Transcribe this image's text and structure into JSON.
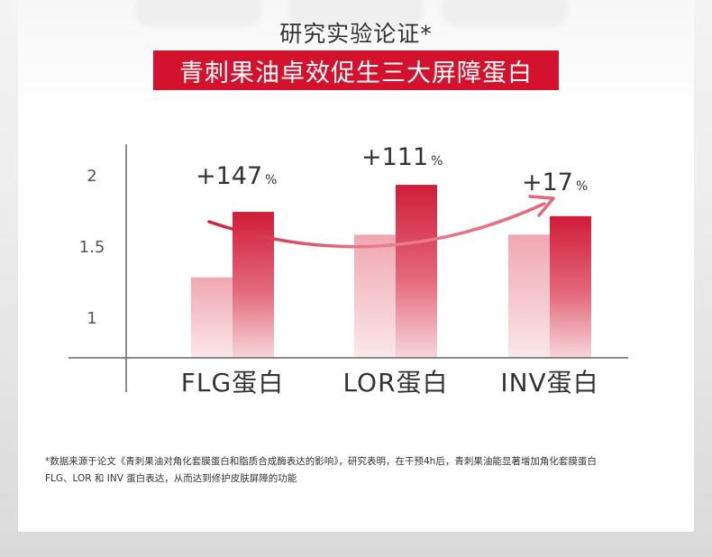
{
  "header": {
    "subtitle": "研究实验论证*",
    "title": "青刺果油卓效促生三大屏障蛋白"
  },
  "chart_data": {
    "type": "bar",
    "categories": [
      "FLG蛋白",
      "LOR蛋白",
      "INV蛋白"
    ],
    "series": [
      {
        "values": [
          1.28,
          1.58,
          1.58
        ]
      },
      {
        "values": [
          1.74,
          1.93,
          1.71
        ]
      }
    ],
    "yticks": [
      "1",
      "1.5",
      "2"
    ],
    "ylim": [
      0.7,
      2.2
    ],
    "annotations": [
      {
        "num": "+147",
        "unit": "%"
      },
      {
        "num": "+111",
        "unit": "%"
      },
      {
        "num": "+17",
        "unit": "%"
      }
    ],
    "colors": {
      "light_bar": "#f2aeb6",
      "dark_bar": "#d3203b",
      "arrow": "#e0697b",
      "axis": "#666666"
    }
  },
  "footnote": {
    "line1": "*数据来源于论文《青刺果油对角化套膜蛋白和脂质合成酶表达的影响》，研究表明，在干预4h后，青刺果油能显著增加角化套膜蛋白",
    "line2": "FLG、LOR 和 INV 蛋白表达，从而达到修护皮肤屏障的功能"
  }
}
